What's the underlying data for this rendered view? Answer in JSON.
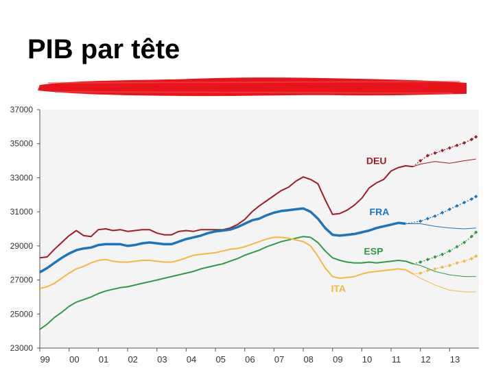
{
  "title": "PIB par tête",
  "colors": {
    "accent_bar": "#e8141b",
    "plot_bg": "#f4f4f4",
    "axis": "#555555"
  },
  "chart_data": {
    "type": "line",
    "title": "",
    "xlabel": "",
    "ylabel": "",
    "ylim": [
      23000,
      37000
    ],
    "xlim": [
      1999,
      2014
    ],
    "yticks": [
      23000,
      25000,
      27000,
      29000,
      31000,
      33000,
      35000,
      37000
    ],
    "xticks": [
      {
        "value": 1999,
        "label": "99"
      },
      {
        "value": 2000,
        "label": "00"
      },
      {
        "value": 2001,
        "label": "01"
      },
      {
        "value": 2002,
        "label": "02"
      },
      {
        "value": 2003,
        "label": "03"
      },
      {
        "value": 2004,
        "label": "04"
      },
      {
        "value": 2005,
        "label": "05"
      },
      {
        "value": 2006,
        "label": "06"
      },
      {
        "value": 2007,
        "label": "07"
      },
      {
        "value": 2008,
        "label": "08"
      },
      {
        "value": 2009,
        "label": "09"
      },
      {
        "value": 2010,
        "label": "10"
      },
      {
        "value": 2011,
        "label": "11"
      },
      {
        "value": 2012,
        "label": "12"
      },
      {
        "value": 2013,
        "label": "13"
      }
    ],
    "grid": false,
    "series": [
      {
        "name": "DEU",
        "color": "#9b1c24",
        "label_at": [
          2010.5,
          33800
        ],
        "actual": [
          [
            1999,
            28300
          ],
          [
            1999.25,
            28350
          ],
          [
            1999.5,
            28800
          ],
          [
            1999.75,
            29200
          ],
          [
            2000,
            29600
          ],
          [
            2000.25,
            29900
          ],
          [
            2000.5,
            29600
          ],
          [
            2000.75,
            29550
          ],
          [
            2001,
            29950
          ],
          [
            2001.25,
            30000
          ],
          [
            2001.5,
            29900
          ],
          [
            2001.75,
            29950
          ],
          [
            2002,
            29850
          ],
          [
            2002.25,
            29900
          ],
          [
            2002.5,
            29950
          ],
          [
            2002.75,
            29950
          ],
          [
            2003,
            29750
          ],
          [
            2003.25,
            29650
          ],
          [
            2003.5,
            29650
          ],
          [
            2003.75,
            29850
          ],
          [
            2004,
            29900
          ],
          [
            2004.25,
            29850
          ],
          [
            2004.5,
            29950
          ],
          [
            2004.75,
            29950
          ],
          [
            2005,
            29950
          ],
          [
            2005.25,
            29950
          ],
          [
            2005.5,
            30050
          ],
          [
            2005.75,
            30250
          ],
          [
            2006,
            30550
          ],
          [
            2006.25,
            31000
          ],
          [
            2006.5,
            31350
          ],
          [
            2006.75,
            31650
          ],
          [
            2007,
            31950
          ],
          [
            2007.25,
            32250
          ],
          [
            2007.5,
            32450
          ],
          [
            2007.75,
            32800
          ],
          [
            2008,
            33050
          ],
          [
            2008.25,
            32900
          ],
          [
            2008.5,
            32650
          ],
          [
            2008.75,
            31700
          ],
          [
            2009,
            30850
          ],
          [
            2009.25,
            30900
          ],
          [
            2009.5,
            31100
          ],
          [
            2009.75,
            31400
          ],
          [
            2010,
            31800
          ],
          [
            2010.25,
            32400
          ],
          [
            2010.5,
            32700
          ],
          [
            2010.75,
            32900
          ],
          [
            2011,
            33400
          ],
          [
            2011.25,
            33600
          ],
          [
            2011.5,
            33700
          ],
          [
            2011.75,
            33650
          ]
        ],
        "baseline": [
          [
            2011.75,
            33650
          ],
          [
            2012,
            33800
          ],
          [
            2012.5,
            33950
          ],
          [
            2013,
            33850
          ],
          [
            2013.5,
            34000
          ],
          [
            2013.9,
            34100
          ]
        ],
        "forecast": [
          [
            2011.75,
            33650
          ],
          [
            2012,
            34000
          ],
          [
            2012.25,
            34300
          ],
          [
            2012.5,
            34450
          ],
          [
            2012.75,
            34600
          ],
          [
            2013,
            34750
          ],
          [
            2013.25,
            34900
          ],
          [
            2013.5,
            35050
          ],
          [
            2013.75,
            35250
          ],
          [
            2013.9,
            35400
          ]
        ]
      },
      {
        "name": "FRA",
        "color": "#1b75bb",
        "label_at": [
          2010.6,
          30800
        ],
        "actual": [
          [
            1999,
            27450
          ],
          [
            1999.25,
            27700
          ],
          [
            1999.5,
            28000
          ],
          [
            1999.75,
            28300
          ],
          [
            2000,
            28550
          ],
          [
            2000.25,
            28750
          ],
          [
            2000.5,
            28850
          ],
          [
            2000.75,
            28900
          ],
          [
            2001,
            29050
          ],
          [
            2001.25,
            29100
          ],
          [
            2001.5,
            29100
          ],
          [
            2001.75,
            29100
          ],
          [
            2002,
            29000
          ],
          [
            2002.25,
            29050
          ],
          [
            2002.5,
            29150
          ],
          [
            2002.75,
            29200
          ],
          [
            2003,
            29150
          ],
          [
            2003.25,
            29100
          ],
          [
            2003.5,
            29100
          ],
          [
            2003.75,
            29250
          ],
          [
            2004,
            29400
          ],
          [
            2004.25,
            29500
          ],
          [
            2004.5,
            29600
          ],
          [
            2004.75,
            29750
          ],
          [
            2005,
            29850
          ],
          [
            2005.25,
            29900
          ],
          [
            2005.5,
            29950
          ],
          [
            2005.75,
            30100
          ],
          [
            2006,
            30300
          ],
          [
            2006.25,
            30500
          ],
          [
            2006.5,
            30600
          ],
          [
            2006.75,
            30800
          ],
          [
            2007,
            30950
          ],
          [
            2007.25,
            31050
          ],
          [
            2007.5,
            31100
          ],
          [
            2007.75,
            31150
          ],
          [
            2008,
            31200
          ],
          [
            2008.25,
            31000
          ],
          [
            2008.5,
            30600
          ],
          [
            2008.75,
            30050
          ],
          [
            2009,
            29650
          ],
          [
            2009.25,
            29600
          ],
          [
            2009.5,
            29650
          ],
          [
            2009.75,
            29700
          ],
          [
            2010,
            29800
          ],
          [
            2010.25,
            29900
          ],
          [
            2010.5,
            30050
          ],
          [
            2010.75,
            30150
          ],
          [
            2011,
            30250
          ],
          [
            2011.25,
            30350
          ],
          [
            2011.5,
            30300
          ]
        ],
        "baseline": [
          [
            2011.5,
            30300
          ],
          [
            2012,
            30300
          ],
          [
            2012.5,
            30150
          ],
          [
            2013,
            30050
          ],
          [
            2013.5,
            30000
          ],
          [
            2013.9,
            30050
          ]
        ],
        "forecast": [
          [
            2011.5,
            30300
          ],
          [
            2012,
            30450
          ],
          [
            2012.25,
            30600
          ],
          [
            2012.5,
            30750
          ],
          [
            2012.75,
            30950
          ],
          [
            2013,
            31150
          ],
          [
            2013.25,
            31350
          ],
          [
            2013.5,
            31550
          ],
          [
            2013.75,
            31750
          ],
          [
            2013.9,
            31900
          ]
        ]
      },
      {
        "name": "ESP",
        "color": "#2e9a47",
        "label_at": [
          2010.4,
          28500
        ],
        "actual": [
          [
            1999,
            24100
          ],
          [
            1999.25,
            24400
          ],
          [
            1999.5,
            24800
          ],
          [
            1999.75,
            25100
          ],
          [
            2000,
            25450
          ],
          [
            2000.25,
            25700
          ],
          [
            2000.5,
            25850
          ],
          [
            2000.75,
            26000
          ],
          [
            2001,
            26200
          ],
          [
            2001.25,
            26350
          ],
          [
            2001.5,
            26450
          ],
          [
            2001.75,
            26550
          ],
          [
            2002,
            26600
          ],
          [
            2002.25,
            26700
          ],
          [
            2002.5,
            26800
          ],
          [
            2002.75,
            26900
          ],
          [
            2003,
            27000
          ],
          [
            2003.25,
            27100
          ],
          [
            2003.5,
            27200
          ],
          [
            2003.75,
            27300
          ],
          [
            2004,
            27400
          ],
          [
            2004.25,
            27500
          ],
          [
            2004.5,
            27650
          ],
          [
            2004.75,
            27750
          ],
          [
            2005,
            27850
          ],
          [
            2005.25,
            27950
          ],
          [
            2005.5,
            28100
          ],
          [
            2005.75,
            28250
          ],
          [
            2006,
            28450
          ],
          [
            2006.25,
            28600
          ],
          [
            2006.5,
            28750
          ],
          [
            2006.75,
            28950
          ],
          [
            2007,
            29100
          ],
          [
            2007.25,
            29250
          ],
          [
            2007.5,
            29350
          ],
          [
            2007.75,
            29450
          ],
          [
            2008,
            29550
          ],
          [
            2008.25,
            29500
          ],
          [
            2008.5,
            29200
          ],
          [
            2008.75,
            28700
          ],
          [
            2009,
            28300
          ],
          [
            2009.25,
            28150
          ],
          [
            2009.5,
            28050
          ],
          [
            2009.75,
            28000
          ],
          [
            2010,
            28000
          ],
          [
            2010.25,
            28050
          ],
          [
            2010.5,
            28000
          ],
          [
            2010.75,
            28050
          ],
          [
            2011,
            28100
          ],
          [
            2011.25,
            28150
          ],
          [
            2011.5,
            28100
          ],
          [
            2011.75,
            27950
          ]
        ],
        "baseline": [
          [
            2011.75,
            27950
          ],
          [
            2012,
            27850
          ],
          [
            2012.5,
            27500
          ],
          [
            2013,
            27300
          ],
          [
            2013.5,
            27200
          ],
          [
            2013.9,
            27200
          ]
        ],
        "forecast": [
          [
            2011.75,
            27950
          ],
          [
            2012,
            28050
          ],
          [
            2012.25,
            28200
          ],
          [
            2012.5,
            28350
          ],
          [
            2012.75,
            28500
          ],
          [
            2013,
            28700
          ],
          [
            2013.25,
            28950
          ],
          [
            2013.5,
            29200
          ],
          [
            2013.75,
            29550
          ],
          [
            2013.9,
            29800
          ]
        ]
      },
      {
        "name": "ITA",
        "color": "#f5b83d",
        "label_at": [
          2009.2,
          26300
        ],
        "actual": [
          [
            1999,
            26500
          ],
          [
            1999.25,
            26600
          ],
          [
            1999.5,
            26800
          ],
          [
            1999.75,
            27100
          ],
          [
            2000,
            27400
          ],
          [
            2000.25,
            27650
          ],
          [
            2000.5,
            27800
          ],
          [
            2000.75,
            28000
          ],
          [
            2001,
            28150
          ],
          [
            2001.25,
            28200
          ],
          [
            2001.5,
            28100
          ],
          [
            2001.75,
            28050
          ],
          [
            2002,
            28050
          ],
          [
            2002.25,
            28100
          ],
          [
            2002.5,
            28150
          ],
          [
            2002.75,
            28150
          ],
          [
            2003,
            28100
          ],
          [
            2003.25,
            28050
          ],
          [
            2003.5,
            28050
          ],
          [
            2003.75,
            28150
          ],
          [
            2004,
            28300
          ],
          [
            2004.25,
            28450
          ],
          [
            2004.5,
            28500
          ],
          [
            2004.75,
            28550
          ],
          [
            2005,
            28600
          ],
          [
            2005.25,
            28700
          ],
          [
            2005.5,
            28800
          ],
          [
            2005.75,
            28850
          ],
          [
            2006,
            28950
          ],
          [
            2006.25,
            29100
          ],
          [
            2006.5,
            29250
          ],
          [
            2006.75,
            29400
          ],
          [
            2007,
            29500
          ],
          [
            2007.25,
            29500
          ],
          [
            2007.5,
            29450
          ],
          [
            2007.75,
            29350
          ],
          [
            2008,
            29250
          ],
          [
            2008.25,
            29000
          ],
          [
            2008.5,
            28400
          ],
          [
            2008.75,
            27700
          ],
          [
            2009,
            27200
          ],
          [
            2009.25,
            27100
          ],
          [
            2009.5,
            27150
          ],
          [
            2009.75,
            27200
          ],
          [
            2010,
            27350
          ],
          [
            2010.25,
            27450
          ],
          [
            2010.5,
            27500
          ],
          [
            2010.75,
            27550
          ],
          [
            2011,
            27600
          ],
          [
            2011.25,
            27650
          ],
          [
            2011.5,
            27600
          ],
          [
            2011.75,
            27350
          ]
        ],
        "baseline": [
          [
            2011.75,
            27350
          ],
          [
            2012,
            27100
          ],
          [
            2012.5,
            26700
          ],
          [
            2013,
            26400
          ],
          [
            2013.5,
            26300
          ],
          [
            2013.9,
            26300
          ]
        ],
        "forecast": [
          [
            2011.75,
            27350
          ],
          [
            2012,
            27400
          ],
          [
            2012.25,
            27550
          ],
          [
            2012.5,
            27650
          ],
          [
            2012.75,
            27750
          ],
          [
            2013,
            27850
          ],
          [
            2013.25,
            28000
          ],
          [
            2013.5,
            28100
          ],
          [
            2013.75,
            28250
          ],
          [
            2013.9,
            28400
          ]
        ]
      }
    ]
  }
}
